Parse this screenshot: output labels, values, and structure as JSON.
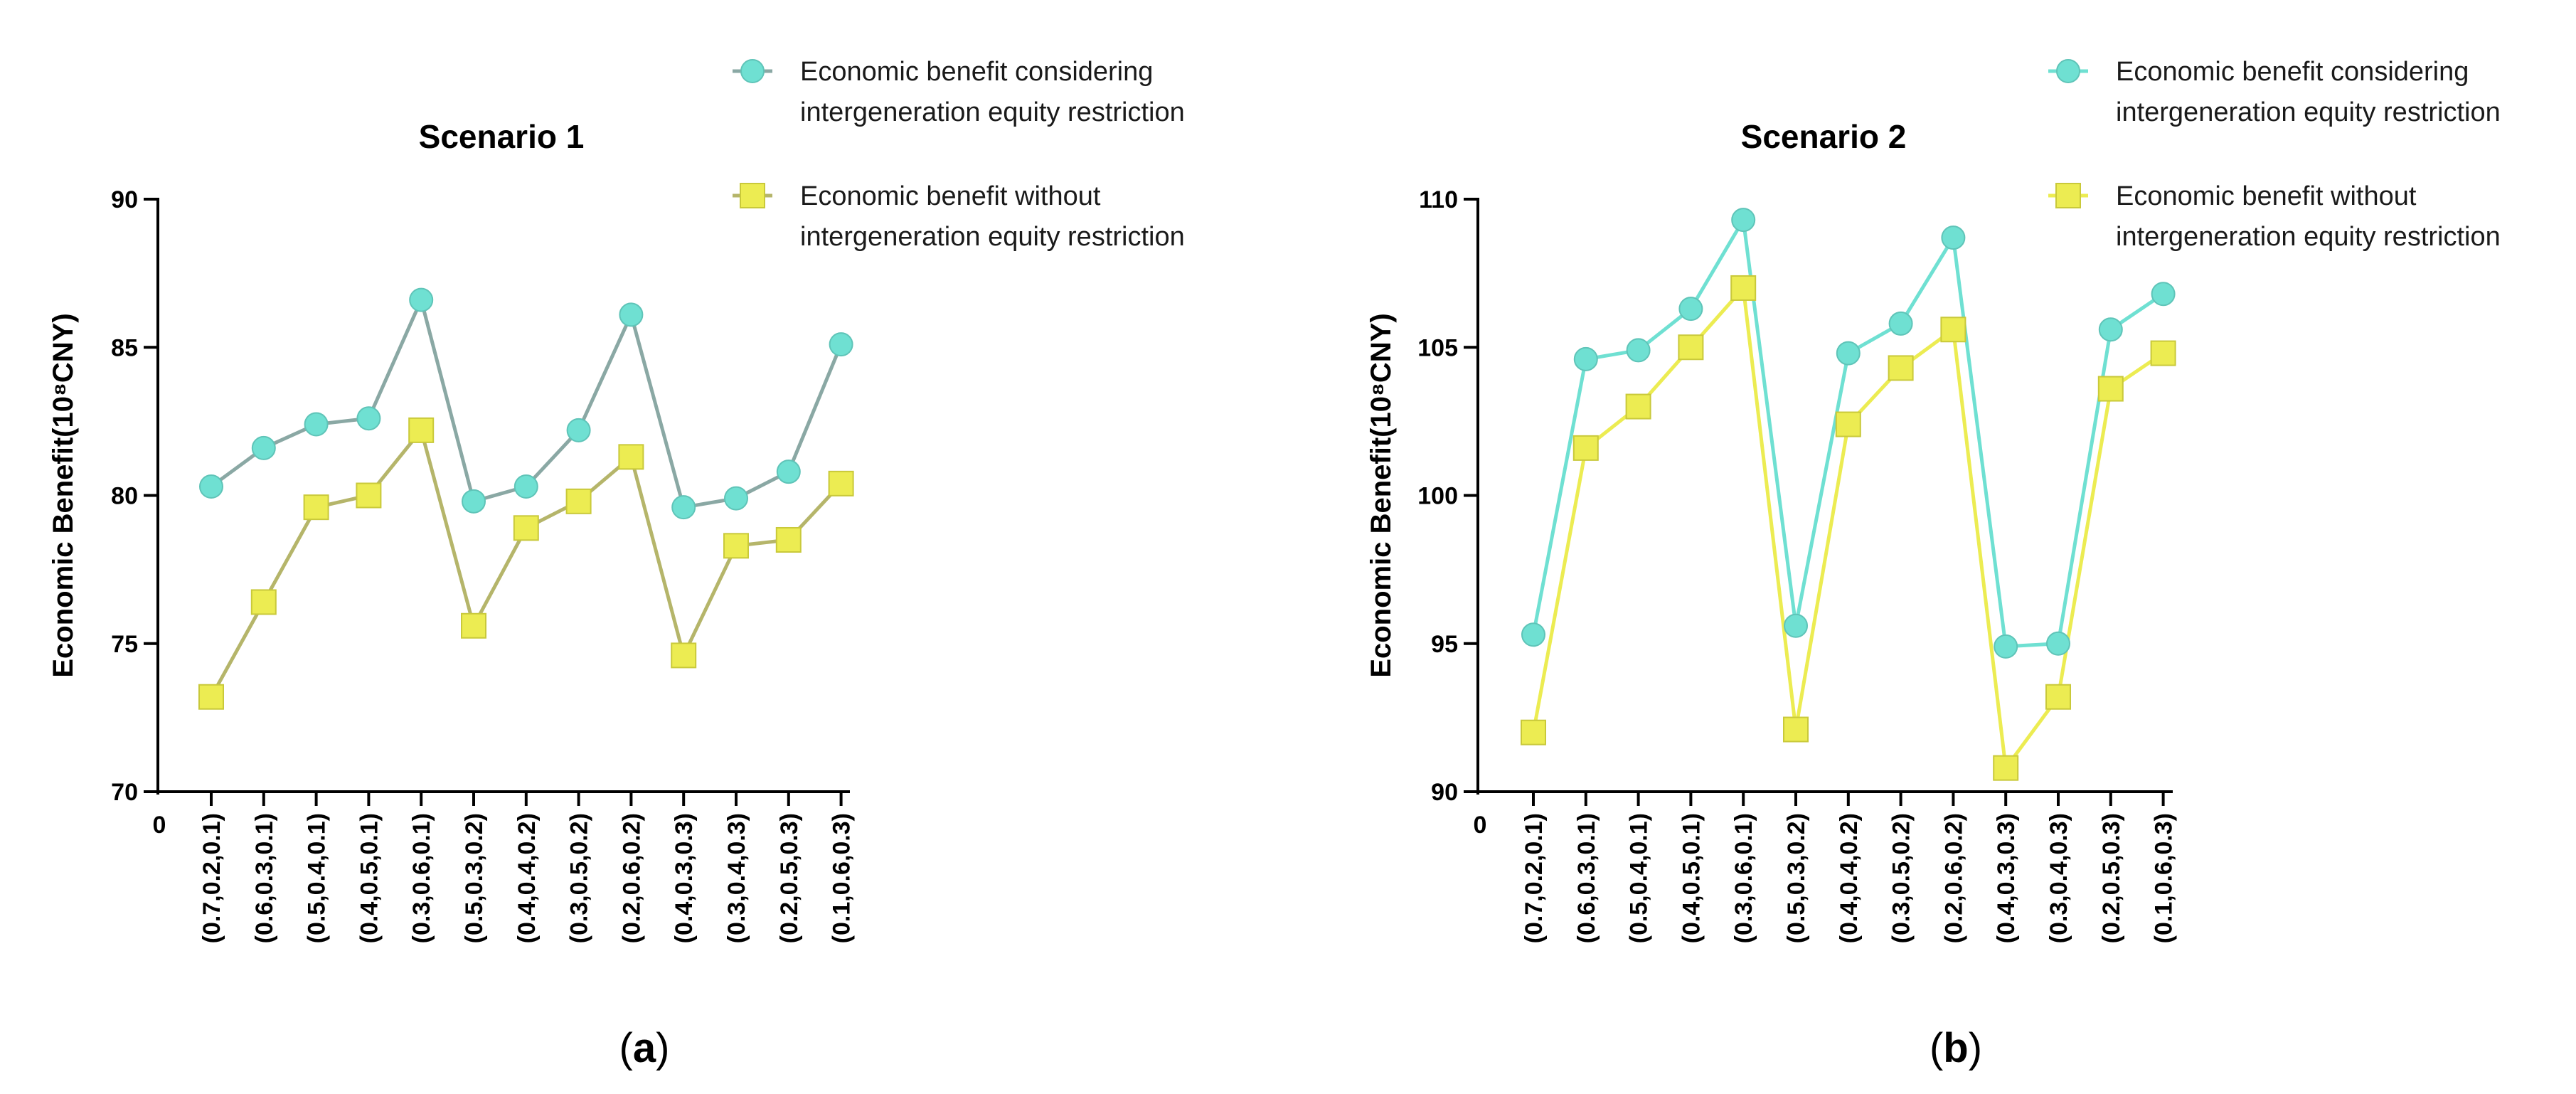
{
  "chart_data": [
    {
      "type": "line",
      "title": "Scenario 1",
      "ylabel": "Economic Benefit(10⁸CNY)",
      "xlabel": "",
      "ylim": [
        70,
        90
      ],
      "yticks": [
        70,
        75,
        80,
        85,
        90
      ],
      "origin_label": "0",
      "categories": [
        "(0.7,0.2,0.1)",
        "(0.6,0.3,0.1)",
        "(0.5,0.4,0.1)",
        "(0.4,0.5,0.1)",
        "(0.3,0.6,0.1)",
        "(0.5,0.3,0.2)",
        "(0.4,0.4,0.2)",
        "(0.3,0.5,0.2)",
        "(0.2,0.6,0.2)",
        "(0.4,0.3,0.3)",
        "(0.3,0.4,0.3)",
        "(0.2,0.5,0.3)",
        "(0.1,0.6,0.3)"
      ],
      "series": [
        {
          "name_lines": [
            "Economic benefit considering",
            "intergeneration equity restriction"
          ],
          "marker": "circle",
          "color": "#6fe0d2",
          "line_color": "#8aa8a4",
          "values": [
            80.3,
            81.6,
            82.4,
            82.6,
            86.6,
            79.8,
            80.3,
            82.2,
            86.1,
            79.6,
            79.9,
            80.8,
            85.1
          ]
        },
        {
          "name_lines": [
            "Economic benefit without",
            "intergeneration equity restriction"
          ],
          "marker": "square",
          "color": "#ecec52",
          "line_color": "#b5b56a",
          "values": [
            73.2,
            76.4,
            79.6,
            80.0,
            82.2,
            75.6,
            78.9,
            79.8,
            81.3,
            74.6,
            78.3,
            78.5,
            80.4
          ]
        }
      ],
      "caption": {
        "open": "(",
        "letter": "a",
        "close": ")"
      }
    },
    {
      "type": "line",
      "title": "Scenario 2",
      "ylabel": "Economic Benefit(10⁸CNY)",
      "xlabel": "",
      "ylim": [
        90,
        110
      ],
      "yticks": [
        90,
        95,
        100,
        105,
        110
      ],
      "origin_label": "0",
      "categories": [
        "(0.7,0.2,0.1)",
        "(0.6,0.3,0.1)",
        "(0.5,0.4,0.1)",
        "(0.4,0.5,0.1)",
        "(0.3,0.6,0.1)",
        "(0.5,0.3,0.2)",
        "(0.4,0.4,0.2)",
        "(0.3,0.5,0.2)",
        "(0.2,0.6,0.2)",
        "(0.4,0.3,0.3)",
        "(0.3,0.4,0.3)",
        "(0.2,0.5,0.3)",
        "(0.1,0.6,0.3)"
      ],
      "series": [
        {
          "name_lines": [
            "Economic benefit considering",
            "intergeneration equity restriction"
          ],
          "marker": "circle",
          "color": "#6fe0d2",
          "line_color": "#6fe0d2",
          "values": [
            95.3,
            104.6,
            104.9,
            106.3,
            109.3,
            95.6,
            104.8,
            105.8,
            108.7,
            94.9,
            95.0,
            105.6,
            106.8
          ]
        },
        {
          "name_lines": [
            "Economic benefit without",
            "intergeneration equity restriction"
          ],
          "marker": "square",
          "color": "#ecec52",
          "line_color": "#ecec52",
          "values": [
            92.0,
            101.6,
            103.0,
            105.0,
            107.0,
            92.1,
            102.4,
            104.3,
            105.6,
            90.8,
            93.2,
            103.6,
            104.8
          ]
        }
      ],
      "caption": {
        "open": "(",
        "letter": "b",
        "close": ")"
      }
    }
  ]
}
